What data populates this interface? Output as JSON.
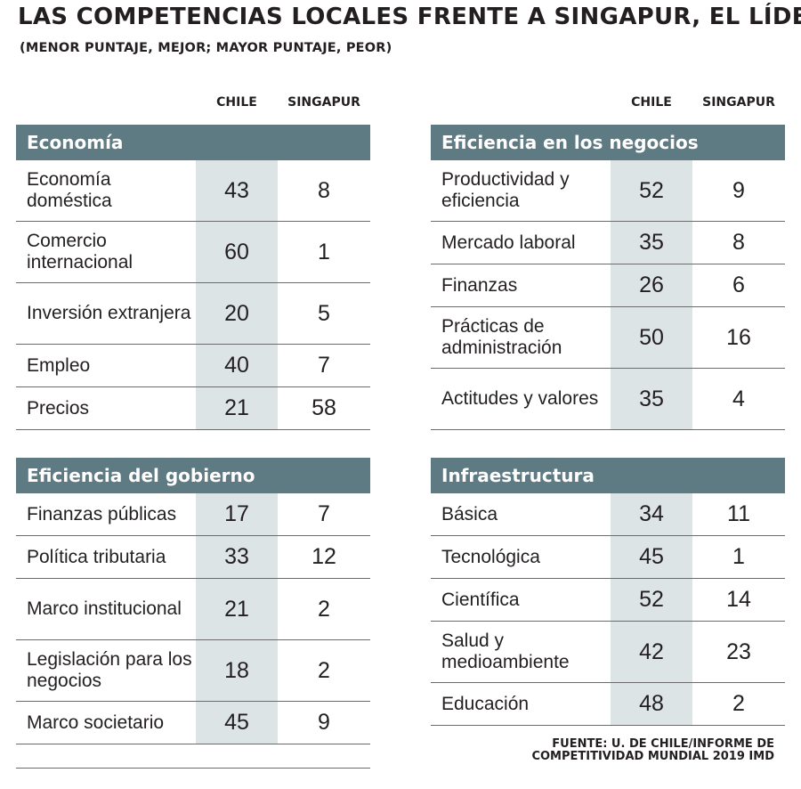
{
  "title": "LAS COMPETENCIAS LOCALES FRENTE A SINGAPUR, EL LÍDER",
  "subtitle": "(MENOR PUNTAJE, MEJOR; MAYOR PUNTAJE, PEOR)",
  "columns": {
    "chile": "CHILE",
    "singapur": "SINGAPUR"
  },
  "colors": {
    "header_bg": "#5e7a82",
    "chile_column_bg": "#dde4e6",
    "text": "#231f20"
  },
  "sections": {
    "economia": {
      "title": "Economía",
      "rows": [
        {
          "label": "Economía doméstica",
          "chile": "43",
          "singapur": "8"
        },
        {
          "label": "Comercio internacional",
          "chile": "60",
          "singapur": "1"
        },
        {
          "label": "Inversión extranjera",
          "chile": "20",
          "singapur": "5"
        },
        {
          "label": "Empleo",
          "chile": "40",
          "singapur": "7"
        },
        {
          "label": "Precios",
          "chile": "21",
          "singapur": "58"
        }
      ]
    },
    "gobierno": {
      "title": "Eficiencia del gobierno",
      "rows": [
        {
          "label": "Finanzas públicas",
          "chile": "17",
          "singapur": "7"
        },
        {
          "label": "Política tributaria",
          "chile": "33",
          "singapur": "12"
        },
        {
          "label": "Marco institucional",
          "chile": "21",
          "singapur": "2"
        },
        {
          "label": "Legislación para los negocios",
          "chile": "18",
          "singapur": "2"
        },
        {
          "label": "Marco societario",
          "chile": "45",
          "singapur": "9"
        }
      ]
    },
    "negocios": {
      "title": "Eficiencia en los negocios",
      "rows": [
        {
          "label": "Productividad y eficiencia",
          "chile": "52",
          "singapur": "9"
        },
        {
          "label": "Mercado laboral",
          "chile": "35",
          "singapur": "8"
        },
        {
          "label": "Finanzas",
          "chile": "26",
          "singapur": "6"
        },
        {
          "label": "Prácticas de administración",
          "chile": "50",
          "singapur": "16"
        },
        {
          "label": "Actitudes y valores",
          "chile": "35",
          "singapur": "4"
        }
      ]
    },
    "infraestructura": {
      "title": "Infraestructura",
      "rows": [
        {
          "label": "Básica",
          "chile": "34",
          "singapur": "11"
        },
        {
          "label": "Tecnológica",
          "chile": "45",
          "singapur": "1"
        },
        {
          "label": "Científica",
          "chile": "52",
          "singapur": "14"
        },
        {
          "label": "Salud y medioambiente",
          "chile": "42",
          "singapur": "23"
        },
        {
          "label": "Educación",
          "chile": "48",
          "singapur": "2"
        }
      ]
    }
  },
  "source": "FUENTE: U. DE CHILE/INFORME DE COMPETITIVIDAD MUNDIAL 2019 IMD"
}
